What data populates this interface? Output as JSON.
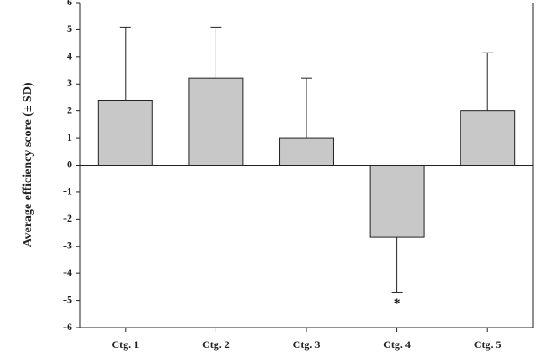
{
  "chart_data": {
    "type": "bar",
    "y_label": "Average efficiency score (± SD)",
    "categories": [
      "Ctg. 1",
      "Ctg. 2",
      "Ctg. 3",
      "Ctg. 4",
      "Ctg. 5"
    ],
    "values": [
      2.4,
      3.2,
      1.0,
      -2.65,
      2.0
    ],
    "errors": [
      2.7,
      1.9,
      2.2,
      2.05,
      2.15
    ],
    "color": "#c8c8c8",
    "ylim": [
      -6,
      6
    ],
    "yticks": [
      -6,
      -5,
      -4,
      -3,
      -2,
      -1,
      0,
      1,
      2,
      3,
      4,
      5,
      6
    ],
    "annotation": "*"
  }
}
